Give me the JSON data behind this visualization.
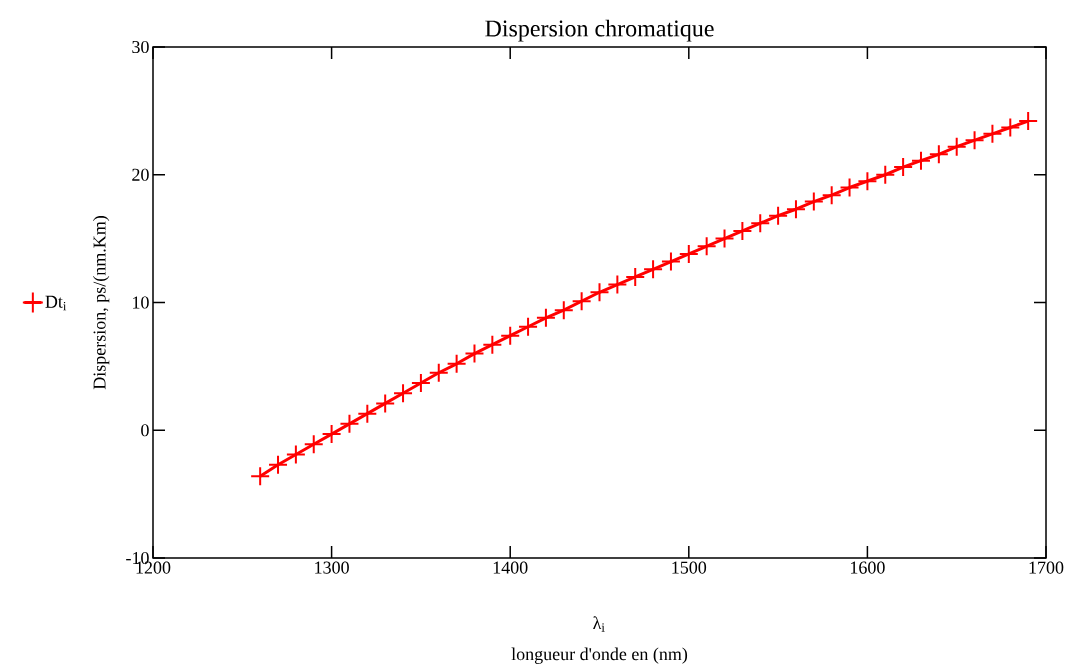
{
  "chart_data": {
    "type": "line",
    "title": "Dispersion chromatique",
    "xlabel": "longueur d'onde en (nm)",
    "ylabel": "Dispersion, ps/(nm.Km)",
    "annotations": [
      "λ$_{i}$"
    ],
    "x": [
      1260,
      1270,
      1280,
      1290,
      1300,
      1310,
      1320,
      1330,
      1340,
      1350,
      1360,
      1370,
      1380,
      1390,
      1400,
      1410,
      1420,
      1430,
      1440,
      1450,
      1460,
      1470,
      1480,
      1490,
      1500,
      1510,
      1520,
      1530,
      1540,
      1550,
      1560,
      1570,
      1580,
      1590,
      1600,
      1610,
      1620,
      1630,
      1640,
      1650,
      1660,
      1670,
      1680,
      1690
    ],
    "series": [
      {
        "name": "Dt$_{i}$",
        "color": "#ff0000",
        "values": [
          -3.6,
          -2.7,
          -1.9,
          -1.1,
          -0.3,
          0.5,
          1.3,
          2.1,
          2.9,
          3.7,
          4.5,
          5.2,
          6.0,
          6.7,
          7.4,
          8.1,
          8.8,
          9.4,
          10.1,
          10.8,
          11.4,
          12.0,
          12.6,
          13.2,
          13.8,
          14.4,
          15.0,
          15.6,
          16.2,
          16.8,
          17.3,
          17.9,
          18.4,
          19.0,
          19.5,
          20.0,
          20.6,
          21.1,
          21.6,
          22.2,
          22.7,
          23.2,
          23.7,
          24.2
        ]
      }
    ],
    "xlim": [
      1200,
      1700
    ],
    "ylim": [
      -10,
      30
    ],
    "xticks": [
      1200,
      1300,
      1400,
      1500,
      1600,
      1700
    ],
    "yticks": [
      -10,
      0,
      10,
      20,
      30
    ],
    "marker": "cross",
    "line_style": "solid",
    "legend": "left",
    "grid": false
  }
}
